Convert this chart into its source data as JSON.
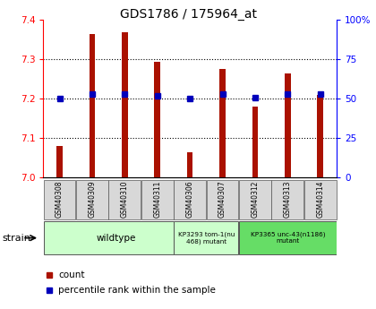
{
  "title": "GDS1786 / 175964_at",
  "samples": [
    "GSM40308",
    "GSM40309",
    "GSM40310",
    "GSM40311",
    "GSM40306",
    "GSM40307",
    "GSM40312",
    "GSM40313",
    "GSM40314"
  ],
  "counts": [
    7.08,
    7.365,
    7.37,
    7.295,
    7.065,
    7.275,
    7.18,
    7.265,
    7.21
  ],
  "percentiles": [
    50,
    53,
    53,
    52,
    50,
    53,
    51,
    53,
    53
  ],
  "ylim_left": [
    7.0,
    7.4
  ],
  "ylim_right": [
    0,
    100
  ],
  "yticks_left": [
    7.0,
    7.1,
    7.2,
    7.3,
    7.4
  ],
  "yticks_right": [
    0,
    25,
    50,
    75,
    100
  ],
  "bar_color": "#aa1100",
  "dot_color": "#0000bb",
  "bar_width": 0.18,
  "groups": [
    {
      "label": "wildtype",
      "indices": [
        0,
        1,
        2,
        3
      ],
      "color": "#ccffcc"
    },
    {
      "label": "KP3293 tom-1(nu\n468) mutant",
      "indices": [
        4,
        5
      ],
      "color": "#ccffcc"
    },
    {
      "label": "KP3365 unc-43(n1186)\nmutant",
      "indices": [
        6,
        7,
        8
      ],
      "color": "#66dd66"
    }
  ],
  "legend_count_label": "count",
  "legend_pct_label": "percentile rank within the sample",
  "strain_label": "strain",
  "bg_color": "#ffffff",
  "plot_bg": "#ffffff",
  "grid_color": "#000000"
}
